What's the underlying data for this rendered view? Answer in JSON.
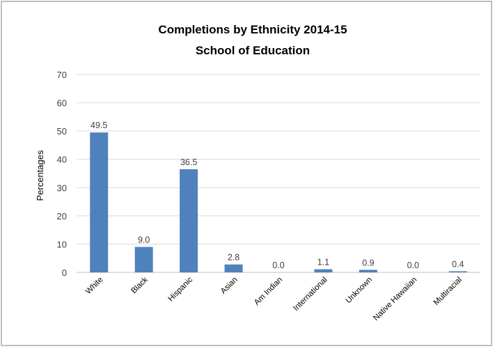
{
  "chart_data": {
    "type": "bar",
    "title": "Completions by Ethnicity 2014-15",
    "subtitle": "School of Education",
    "xlabel": "",
    "ylabel": "Percentages",
    "categories": [
      "White",
      "Black",
      "Hispanic",
      "Asian",
      "Am Indian",
      "International",
      "Unknown",
      "Native Hawaiian",
      "Multiracial"
    ],
    "values": [
      49.5,
      9.0,
      36.5,
      2.8,
      0.0,
      1.1,
      0.9,
      0.0,
      0.4
    ],
    "data_labels": [
      "49.5",
      "9.0",
      "36.5",
      "2.8",
      "0.0",
      "1.1",
      "0.9",
      "0.0",
      "0.4"
    ],
    "yticks": [
      "0",
      "10",
      "20",
      "30",
      "40",
      "50",
      "60",
      "70"
    ],
    "ylim": [
      0,
      70
    ],
    "grid": true,
    "legend": "none",
    "bar_color": "#4f81bd",
    "grid_color": "#d9d9d9"
  }
}
